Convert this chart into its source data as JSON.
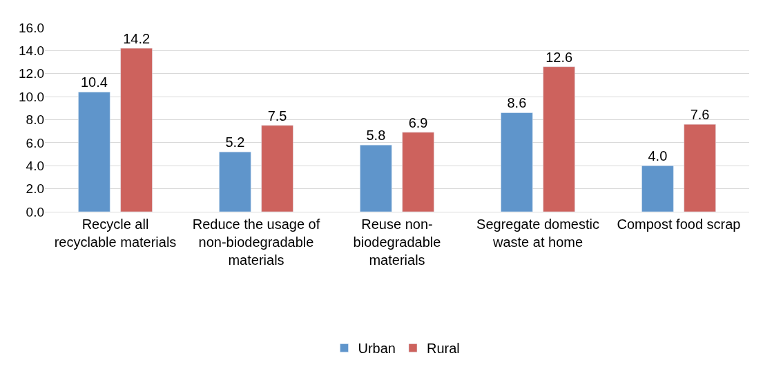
{
  "chart_data": {
    "type": "bar",
    "categories": [
      "Recycle all recyclable materials",
      "Reduce the usage of non-biodegradable materials",
      "Reuse non-biodegradable materials",
      "Segregate domestic waste at home",
      "Compost food scrap"
    ],
    "series": [
      {
        "name": "Urban",
        "color": "#5f95cb",
        "values": [
          10.4,
          5.2,
          5.8,
          8.6,
          4.0
        ],
        "value_labels": [
          "10.4",
          "5.2",
          "5.8",
          "8.6",
          "4.0"
        ]
      },
      {
        "name": "Rural",
        "color": "#cd625d",
        "values": [
          14.2,
          7.5,
          6.9,
          12.6,
          7.6
        ],
        "value_labels": [
          "14.2",
          "7.5",
          "6.9",
          "12.6",
          "7.6"
        ]
      }
    ],
    "ylim": [
      0,
      16
    ],
    "yticks": [
      {
        "value": 0,
        "label": "0.0"
      },
      {
        "value": 2,
        "label": "2.0"
      },
      {
        "value": 4,
        "label": "4.0"
      },
      {
        "value": 6,
        "label": "6.0"
      },
      {
        "value": 8,
        "label": "8.0"
      },
      {
        "value": 10,
        "label": "10.0"
      },
      {
        "value": 12,
        "label": "12.0"
      },
      {
        "value": 14,
        "label": "14.0"
      },
      {
        "value": 16,
        "label": "16.0"
      }
    ],
    "grid": "y",
    "legend": "bottom"
  }
}
